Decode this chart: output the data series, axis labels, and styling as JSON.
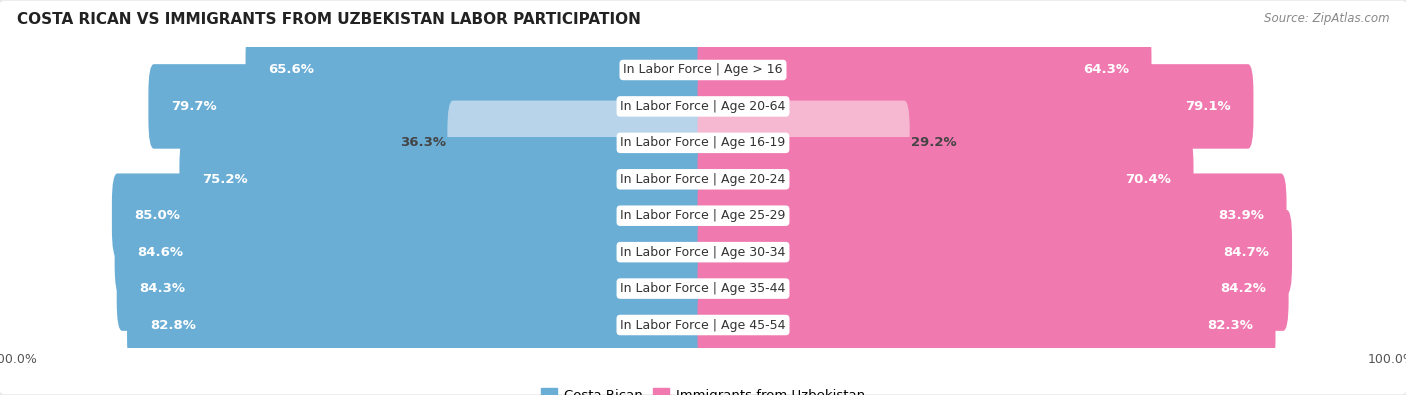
{
  "title": "COSTA RICAN VS IMMIGRANTS FROM UZBEKISTAN LABOR PARTICIPATION",
  "source": "Source: ZipAtlas.com",
  "categories": [
    "In Labor Force | Age > 16",
    "In Labor Force | Age 20-64",
    "In Labor Force | Age 16-19",
    "In Labor Force | Age 20-24",
    "In Labor Force | Age 25-29",
    "In Labor Force | Age 30-34",
    "In Labor Force | Age 35-44",
    "In Labor Force | Age 45-54"
  ],
  "costa_rican": [
    65.6,
    79.7,
    36.3,
    75.2,
    85.0,
    84.6,
    84.3,
    82.8
  ],
  "uzbekistan": [
    64.3,
    79.1,
    29.2,
    70.4,
    83.9,
    84.7,
    84.2,
    82.3
  ],
  "costa_rican_color": "#6aaed6",
  "costa_rican_light_color": "#b8d4eb",
  "uzbekistan_color": "#f07ab0",
  "uzbekistan_light_color": "#f5b8d0",
  "background_color": "#e8e8e8",
  "max_value": 100.0,
  "label_fontsize": 9.5,
  "title_fontsize": 11,
  "source_fontsize": 8.5,
  "legend_fontsize": 9.5
}
